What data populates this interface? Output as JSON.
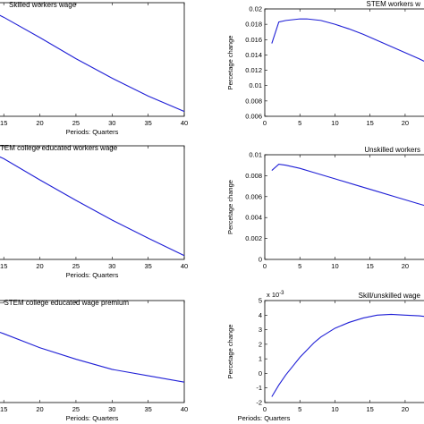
{
  "chart_data": [
    {
      "type": "line",
      "title": "Skilled workers wage",
      "xlabel": "Periods: Quarters",
      "ylabel": "",
      "xlim": [
        12,
        40
      ],
      "xticks": [
        15,
        20,
        25,
        30,
        35,
        40
      ],
      "yticks": [],
      "ytick_labels": [],
      "yscale_label": "",
      "series": [
        {
          "x": [
            12,
            15,
            20,
            25,
            30,
            35,
            40
          ],
          "y": [
            0.0195,
            0.0182,
            0.0157,
            0.0131,
            0.0107,
            0.0085,
            0.0066
          ]
        }
      ],
      "ylim": [
        0.006,
        0.02
      ]
    },
    {
      "type": "line",
      "title": "STEM workers w",
      "xlabel": "",
      "ylabel": "Percetage change",
      "xlim": [
        0,
        26
      ],
      "xticks": [
        0,
        5,
        10,
        15,
        20
      ],
      "yticks": [
        0.006,
        0.008,
        0.01,
        0.012,
        0.014,
        0.016,
        0.018,
        0.02
      ],
      "ytick_labels": [
        "0.006",
        "0.008",
        "0.01",
        "0.012",
        "0.014",
        "0.016",
        "0.018",
        "0.02"
      ],
      "yscale_label": "",
      "series": [
        {
          "x": [
            1,
            2,
            3,
            4,
            5,
            6,
            8,
            10,
            12,
            14,
            16,
            18,
            20,
            22,
            24,
            26
          ],
          "y": [
            0.0155,
            0.0183,
            0.0185,
            0.0186,
            0.0187,
            0.0187,
            0.0185,
            0.018,
            0.0174,
            0.0167,
            0.0159,
            0.0151,
            0.0143,
            0.0135,
            0.0126,
            0.0118
          ]
        }
      ],
      "ylim": [
        0.006,
        0.02
      ]
    },
    {
      "type": "line",
      "title": "TEM college educated workers wage",
      "xlabel": "Periods: Quarters",
      "ylabel": "",
      "xlim": [
        12,
        40
      ],
      "xticks": [
        15,
        20,
        25,
        30,
        35,
        40
      ],
      "yticks": [],
      "ytick_labels": [],
      "yscale_label": "",
      "series": [
        {
          "x": [
            12,
            15,
            20,
            25,
            30,
            35,
            40
          ],
          "y": [
            0.0196,
            0.0183,
            0.0155,
            0.0128,
            0.0102,
            0.0078,
            0.0055
          ]
        }
      ],
      "ylim": [
        0.005,
        0.02
      ]
    },
    {
      "type": "line",
      "title": "Unskilled workers",
      "xlabel": "",
      "ylabel": "Percetage change",
      "xlim": [
        0,
        26
      ],
      "xticks": [
        0,
        5,
        10,
        15,
        20
      ],
      "yticks": [
        0,
        0.002,
        0.004,
        0.006,
        0.008,
        0.01
      ],
      "ytick_labels": [
        "0",
        "0.002",
        "0.004",
        "0.006",
        "0.008",
        "0.01"
      ],
      "yscale_label": "",
      "series": [
        {
          "x": [
            1,
            2,
            3,
            5,
            7,
            10,
            13,
            16,
            19,
            22,
            24,
            26
          ],
          "y": [
            0.0085,
            0.0091,
            0.009,
            0.0087,
            0.0083,
            0.0077,
            0.0071,
            0.0065,
            0.0059,
            0.0053,
            0.0049,
            0.0045
          ]
        }
      ],
      "ylim": [
        0,
        0.01
      ]
    },
    {
      "type": "line",
      "title": "–STEM college educated wage premium",
      "xlabel": "Periods: Quarters",
      "ylabel": "",
      "xlim": [
        12,
        40
      ],
      "xticks": [
        15,
        20,
        25,
        30,
        35,
        40
      ],
      "yticks": [],
      "ytick_labels": [],
      "yscale_label": "",
      "series": [
        {
          "x": [
            12,
            15,
            20,
            25,
            30,
            35,
            40
          ],
          "y": [
            0.01,
            0.0094,
            0.0083,
            0.0074,
            0.0066,
            0.0061,
            0.0056
          ]
        }
      ],
      "ylim": [
        0.004,
        0.012
      ]
    },
    {
      "type": "line",
      "title": "Skill/unskilled wage",
      "xlabel": "Periods: Quarters",
      "ylabel": "Percetage change",
      "xlim": [
        0,
        26
      ],
      "xticks": [
        0,
        5,
        10,
        15,
        20
      ],
      "yticks": [
        -2,
        -1,
        0,
        1,
        2,
        3,
        4,
        5
      ],
      "ytick_labels": [
        "-2",
        "-1",
        "0",
        "1",
        "2",
        "3",
        "4",
        "5"
      ],
      "yscale_label": "x 10^-3",
      "series": [
        {
          "x": [
            1,
            2,
            3,
            4,
            5,
            6,
            7,
            8,
            10,
            12,
            14,
            16,
            18,
            20,
            22,
            24,
            26
          ],
          "y": [
            -1.6,
            -0.8,
            -0.1,
            0.5,
            1.1,
            1.6,
            2.1,
            2.5,
            3.1,
            3.5,
            3.8,
            4.0,
            4.05,
            4.0,
            3.95,
            3.85,
            3.75
          ]
        }
      ],
      "ylim": [
        -2,
        5
      ]
    }
  ]
}
